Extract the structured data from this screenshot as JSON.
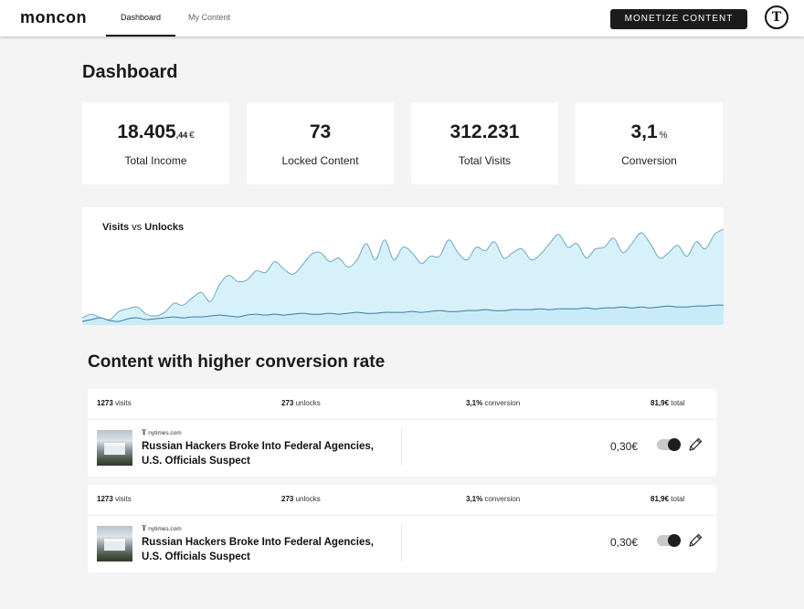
{
  "nav": {
    "logo": "moncon",
    "tabs": [
      {
        "label": "Dashboard",
        "active": true
      },
      {
        "label": "My Content",
        "active": false
      }
    ],
    "cta_label": "MONETIZE CONTENT",
    "avatar_text": "T"
  },
  "page": {
    "title": "Dashboard"
  },
  "stats": [
    {
      "value": "18.405",
      "decimals": ",44",
      "unit": "€",
      "label": "Total Income"
    },
    {
      "value": "73",
      "decimals": "",
      "unit": "",
      "label": "Locked Content"
    },
    {
      "value": "312.231",
      "decimals": "",
      "unit": "",
      "label": "Total Visits"
    },
    {
      "value": "3,1",
      "decimals": "",
      "unit": "%",
      "label": "Conversion"
    }
  ],
  "chart_data": {
    "type": "area",
    "title_part1": "Visits",
    "title_part2": " vs ",
    "title_part3": "Unlocks",
    "series": [
      {
        "name": "Visits",
        "values": [
          8,
          12,
          8,
          6,
          15,
          18,
          20,
          12,
          10,
          14,
          24,
          22,
          30,
          36,
          26,
          45,
          55,
          48,
          50,
          60,
          58,
          70,
          62,
          56,
          66,
          78,
          80,
          70,
          74,
          64,
          72,
          90,
          72,
          94,
          72,
          86,
          80,
          68,
          76,
          76,
          94,
          80,
          72,
          86,
          82,
          92,
          74,
          80,
          84,
          72,
          78,
          90,
          100,
          86,
          90,
          74,
          84,
          86,
          96,
          80,
          90,
          102,
          90,
          74,
          80,
          88,
          76,
          92,
          84,
          100,
          106
        ]
      },
      {
        "name": "Unlocks",
        "values": [
          4,
          6,
          8,
          5,
          4,
          7,
          8,
          6,
          7,
          8,
          9,
          8,
          9,
          9,
          10,
          11,
          10,
          9,
          11,
          12,
          11,
          12,
          11,
          12,
          13,
          12,
          12,
          13,
          12,
          13,
          14,
          13,
          13,
          14,
          14,
          14,
          15,
          14,
          15,
          16,
          15,
          15,
          16,
          16,
          17,
          16,
          16,
          17,
          17,
          17,
          18,
          17,
          18,
          18,
          18,
          19,
          18,
          19,
          19,
          20,
          19,
          20,
          19,
          20,
          21,
          20,
          20,
          21,
          21,
          22,
          22
        ]
      }
    ],
    "ylim": [
      0,
      120
    ],
    "colors": {
      "visits_fill": "#d7f1fb",
      "visits_stroke": "#6fa8c6",
      "unlocks_fill": "#c9ebf8",
      "unlocks_stroke": "#3d7aa3"
    }
  },
  "section": {
    "title": "Content with higher conversion rate"
  },
  "rows": [
    {
      "visits": "1273",
      "visits_label": "visits",
      "unlocks": "273",
      "unlocks_label": "unlocks",
      "conversion": "3,1%",
      "conversion_label": "conversion",
      "total": "81,9€",
      "total_label": "total",
      "source_glyph": "T",
      "source": "nytimes.com",
      "headline": "Russian Hackers Broke Into Federal Agencies, U.S. Officials Suspect",
      "price": "0,30€",
      "enabled": true
    },
    {
      "visits": "1273",
      "visits_label": "visits",
      "unlocks": "273",
      "unlocks_label": "unlocks",
      "conversion": "3,1%",
      "conversion_label": "conversion",
      "total": "81,9€",
      "total_label": "total",
      "source_glyph": "T",
      "source": "nytimes.com",
      "headline": "Russian Hackers Broke Into Federal Agencies, U.S. Officials Suspect",
      "price": "0,30€",
      "enabled": true
    }
  ]
}
